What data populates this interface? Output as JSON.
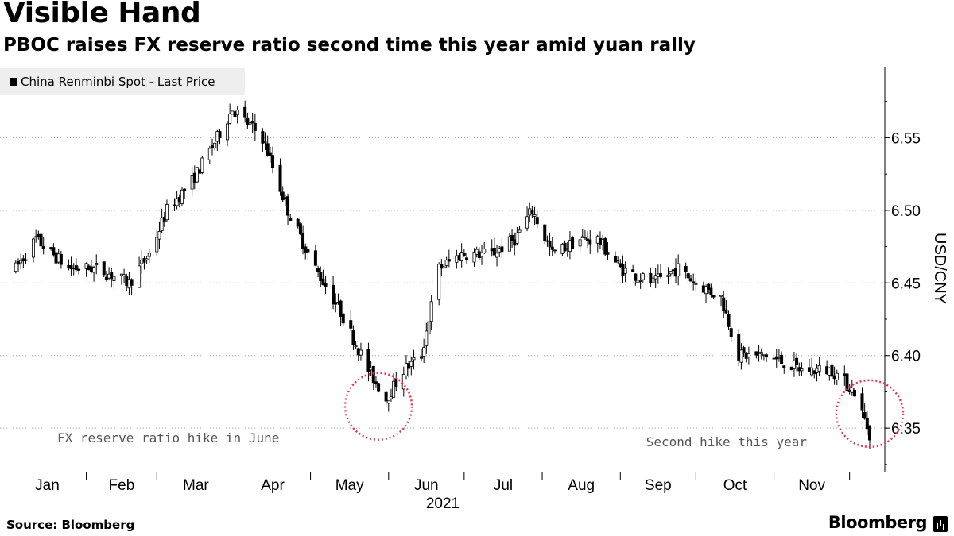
{
  "header": {
    "title": "Visible Hand",
    "subtitle": "PBOC raises FX reserve ratio second time this year amid yuan rally"
  },
  "footer": {
    "source": "Source: Bloomberg",
    "brand": "Bloomberg"
  },
  "chart_data": {
    "type": "candlestick",
    "title": "Visible Hand",
    "subtitle": "PBOC raises FX reserve ratio second time this year amid yuan rally",
    "ylabel": "USD/CNY",
    "xlabel": "2021",
    "ylim": [
      6.32,
      6.6
    ],
    "yticks": [
      6.35,
      6.4,
      6.45,
      6.5,
      6.55
    ],
    "ytick_labels": [
      "6.35",
      "6.40",
      "6.45",
      "6.50",
      "6.55"
    ],
    "x_labels": [
      "Jan",
      "Feb",
      "Mar",
      "Apr",
      "May",
      "Jun",
      "Jul",
      "Aug",
      "Sep",
      "Oct",
      "Nov"
    ],
    "grid": "horizontal-dotted",
    "legend": {
      "label": "China Renminbi Spot - Last Price",
      "position": "top-left"
    },
    "annotations": [
      {
        "text": "FX reserve ratio hike in June",
        "date": "2021-05-28",
        "value": 6.365
      },
      {
        "text": "Second hike this year",
        "date": "2021-12-09",
        "value": 6.36
      }
    ],
    "colors": {
      "candle": "#000000",
      "highlight": "#e8334a"
    },
    "keypoints": [
      {
        "date": "2021-01-04",
        "value": 6.46
      },
      {
        "date": "2021-01-12",
        "value": 6.48
      },
      {
        "date": "2021-01-25",
        "value": 6.46
      },
      {
        "date": "2021-02-05",
        "value": 6.46
      },
      {
        "date": "2021-02-18",
        "value": 6.45
      },
      {
        "date": "2021-02-26",
        "value": 6.47
      },
      {
        "date": "2021-03-05",
        "value": 6.5
      },
      {
        "date": "2021-03-15",
        "value": 6.52
      },
      {
        "date": "2021-03-25",
        "value": 6.55
      },
      {
        "date": "2021-03-31",
        "value": 6.57
      },
      {
        "date": "2021-04-12",
        "value": 6.55
      },
      {
        "date": "2021-04-22",
        "value": 6.5
      },
      {
        "date": "2021-05-03",
        "value": 6.46
      },
      {
        "date": "2021-05-13",
        "value": 6.43
      },
      {
        "date": "2021-05-24",
        "value": 6.39
      },
      {
        "date": "2021-05-31",
        "value": 6.37
      },
      {
        "date": "2021-06-07",
        "value": 6.39
      },
      {
        "date": "2021-06-14",
        "value": 6.4
      },
      {
        "date": "2021-06-21",
        "value": 6.46
      },
      {
        "date": "2021-06-30",
        "value": 6.47
      },
      {
        "date": "2021-07-12",
        "value": 6.47
      },
      {
        "date": "2021-07-21",
        "value": 6.48
      },
      {
        "date": "2021-07-28",
        "value": 6.5
      },
      {
        "date": "2021-08-05",
        "value": 6.47
      },
      {
        "date": "2021-08-16",
        "value": 6.48
      },
      {
        "date": "2021-08-23",
        "value": 6.48
      },
      {
        "date": "2021-09-01",
        "value": 6.46
      },
      {
        "date": "2021-09-14",
        "value": 6.45
      },
      {
        "date": "2021-09-24",
        "value": 6.46
      },
      {
        "date": "2021-10-01",
        "value": 6.45
      },
      {
        "date": "2021-10-11",
        "value": 6.44
      },
      {
        "date": "2021-10-18",
        "value": 6.4
      },
      {
        "date": "2021-10-29",
        "value": 6.4
      },
      {
        "date": "2021-11-12",
        "value": 6.39
      },
      {
        "date": "2021-11-24",
        "value": 6.39
      },
      {
        "date": "2021-12-03",
        "value": 6.375
      },
      {
        "date": "2021-12-09",
        "value": 6.346
      }
    ]
  }
}
